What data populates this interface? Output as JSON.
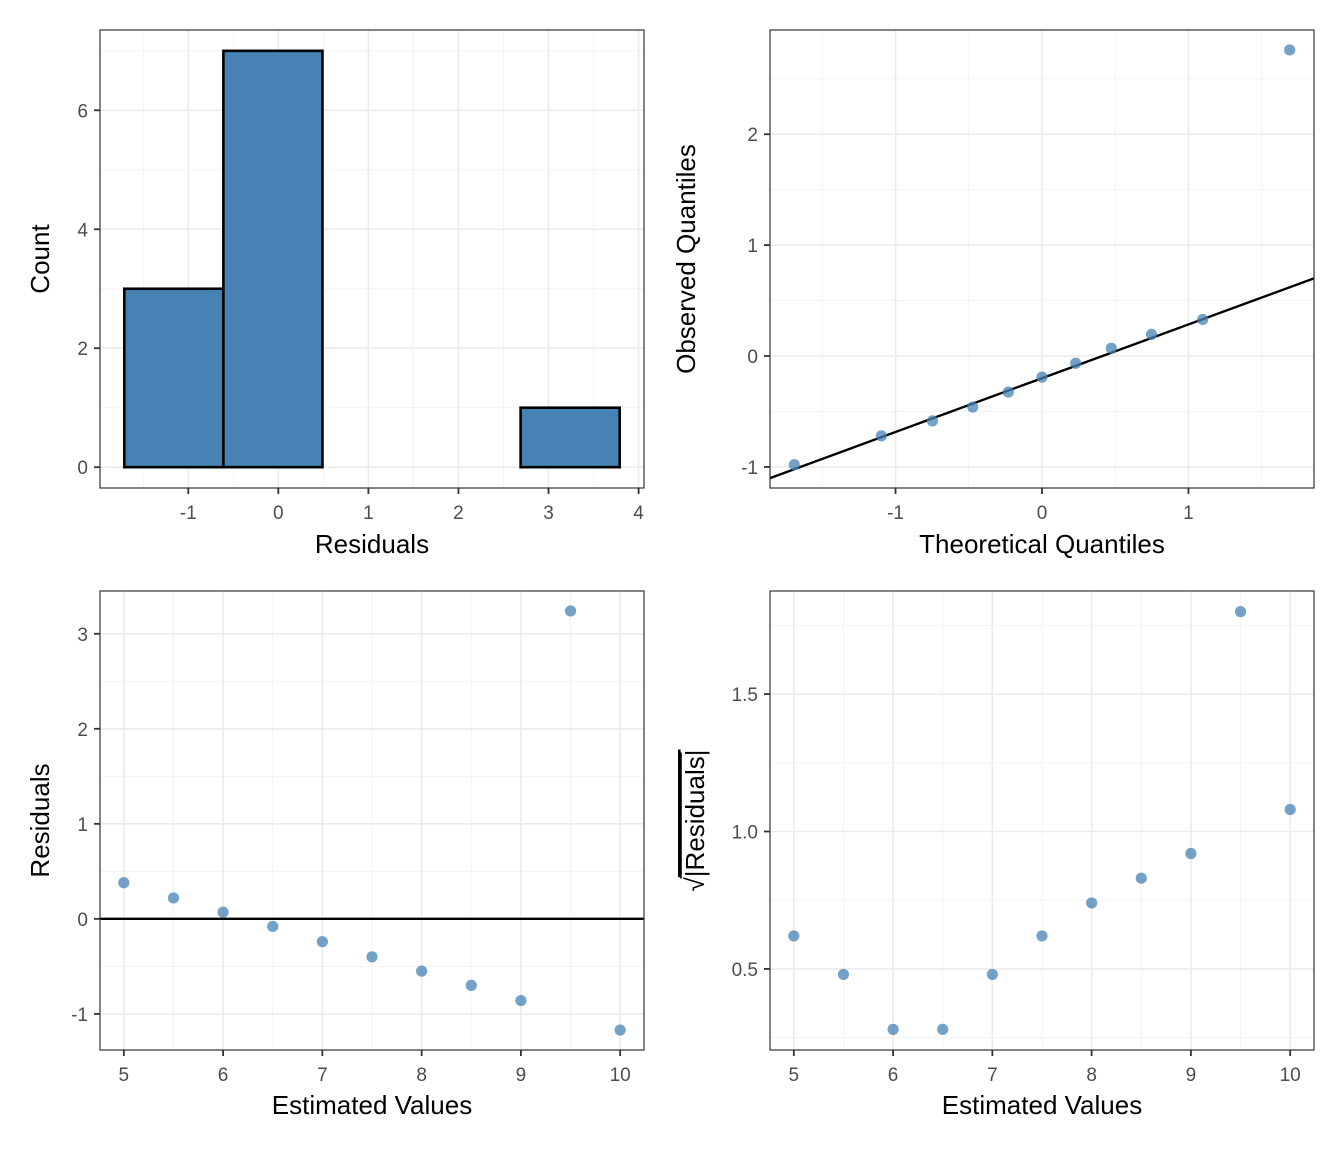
{
  "colors": {
    "bar_fill": "#4682b4",
    "point_fill": "#4682b4",
    "point_opacity": 0.75,
    "line": "#000000"
  },
  "chart_data": [
    {
      "id": "histogram",
      "type": "bar",
      "title": "",
      "xlabel": "Residuals",
      "ylabel": "Count",
      "bins": [
        {
          "x0": -1.71,
          "x1": -0.61,
          "count": 3
        },
        {
          "x0": -0.61,
          "x1": 0.49,
          "count": 7
        },
        {
          "x0": 0.49,
          "x1": 1.59,
          "count": 0
        },
        {
          "x0": 1.59,
          "x1": 2.69,
          "count": 0
        },
        {
          "x0": 2.69,
          "x1": 3.79,
          "count": 1
        }
      ],
      "xlim": [
        -1.98,
        4.06
      ],
      "ylim": [
        -0.35,
        7.35
      ],
      "xticks": [
        -1,
        0,
        1,
        2,
        3,
        4
      ],
      "xtick_labels": [
        "-1",
        "0",
        "1",
        "2",
        "3",
        "4"
      ],
      "yticks": [
        0,
        2,
        4,
        6
      ],
      "ytick_labels": [
        "0",
        "2",
        "4",
        "6"
      ],
      "grid": true
    },
    {
      "id": "qq-plot",
      "type": "scatter",
      "title": "",
      "xlabel": "Theoretical Quantiles",
      "ylabel": "Observed Quantiles",
      "x": [
        -1.691,
        -1.097,
        -0.748,
        -0.473,
        -0.23,
        0.0,
        0.23,
        0.473,
        0.748,
        1.097,
        1.691
      ],
      "y": [
        -0.98,
        -0.72,
        -0.585,
        -0.46,
        -0.325,
        -0.19,
        -0.065,
        0.07,
        0.195,
        0.33,
        2.76
      ],
      "reference_line": {
        "intercept": -0.2,
        "slope": 0.485
      },
      "xlim": [
        -1.857,
        1.857
      ],
      "ylim": [
        -1.19,
        2.94
      ],
      "xticks": [
        -1,
        0,
        1
      ],
      "xtick_labels": [
        "-1",
        "0",
        "1"
      ],
      "yticks": [
        -1,
        0,
        1,
        2
      ],
      "ytick_labels": [
        "-1",
        "0",
        "1",
        "2"
      ],
      "grid": true
    },
    {
      "id": "residuals-vs-fitted",
      "type": "scatter",
      "title": "",
      "xlabel": "Estimated Values",
      "ylabel": "Residuals",
      "x": [
        5,
        5.5,
        6,
        6.5,
        7,
        7.5,
        8,
        8.5,
        9,
        9.5,
        10
      ],
      "y": [
        0.38,
        0.22,
        0.07,
        -0.08,
        -0.24,
        -0.4,
        -0.55,
        -0.7,
        -0.86,
        3.24,
        -1.17
      ],
      "hline": 0,
      "xlim": [
        4.76,
        10.24
      ],
      "ylim": [
        -1.38,
        3.45
      ],
      "xticks": [
        5,
        6,
        7,
        8,
        9,
        10
      ],
      "xtick_labels": [
        "5",
        "6",
        "7",
        "8",
        "9",
        "10"
      ],
      "yticks": [
        -1,
        0,
        1,
        2,
        3
      ],
      "ytick_labels": [
        "-1",
        "0",
        "1",
        "2",
        "3"
      ],
      "grid": true
    },
    {
      "id": "scale-location",
      "type": "scatter",
      "title": "",
      "xlabel": "Estimated Values",
      "ylabel_prefix": "√",
      "ylabel": "|Residuals|",
      "x": [
        5,
        5.5,
        6,
        6.5,
        7,
        7.5,
        8,
        8.5,
        9,
        9.5,
        10
      ],
      "y": [
        0.62,
        0.48,
        0.28,
        0.28,
        0.48,
        0.62,
        0.74,
        0.83,
        0.92,
        1.8,
        1.08
      ],
      "xlim": [
        4.76,
        10.24
      ],
      "ylim": [
        0.205,
        1.875
      ],
      "xticks": [
        5,
        6,
        7,
        8,
        9,
        10
      ],
      "xtick_labels": [
        "5",
        "6",
        "7",
        "8",
        "9",
        "10"
      ],
      "yticks": [
        0.5,
        1.0,
        1.5
      ],
      "ytick_labels": [
        "0.5",
        "1.0",
        "1.5"
      ],
      "grid": true
    }
  ]
}
